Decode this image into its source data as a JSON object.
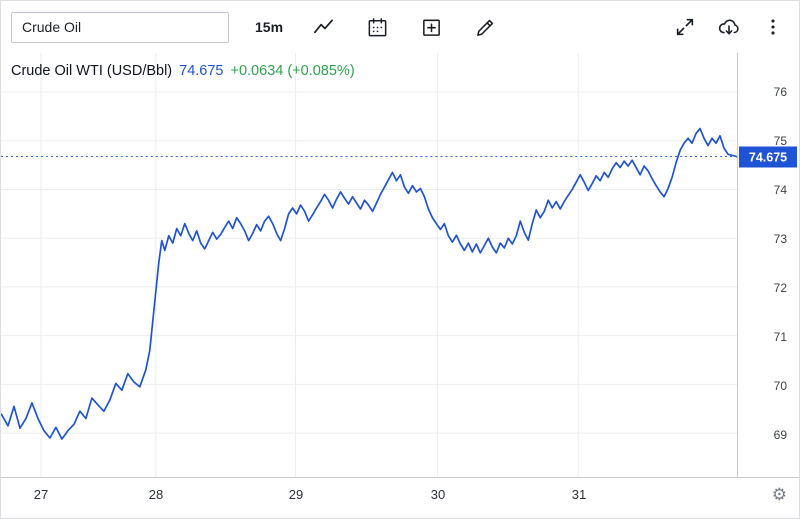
{
  "toolbar": {
    "symbol_input": {
      "value": "Crude Oil"
    },
    "interval": "15m",
    "icons": {
      "chart_type": "line-chart-icon",
      "calendar": "calendar-icon",
      "compare": "add-compare-icon",
      "draw": "draw-pencil-icon",
      "fullscreen": "fullscreen-icon",
      "download": "cloud-download-icon",
      "more": "kebab-menu-icon"
    }
  },
  "legend": {
    "symbol": "Crude Oil WTI (USD/Bbl)",
    "price": "74.675",
    "change": "+0.0634 (+0.085%)"
  },
  "price_axis": {
    "badge_value": "74.675"
  },
  "colors": {
    "line": "#1f53d6",
    "price_text": "#1f53d6",
    "change_text": "#2da44e",
    "badge_bg": "#1f53d6",
    "badge_text": "#ffffff",
    "grid": "#ebedef",
    "axis_text": "#3d414b",
    "axis_border": "#c9ccd1"
  },
  "chart_data": {
    "type": "line",
    "title": "Crude Oil WTI (USD/Bbl)",
    "interval": "15m",
    "last_price": 74.675,
    "change_abs": 0.0634,
    "change_pct": 0.085,
    "ylim": [
      68.1,
      76.8
    ],
    "y_ticks": [
      69,
      70,
      71,
      72,
      73,
      74,
      75,
      76
    ],
    "grid": true,
    "legend_position": "top-left",
    "xmax": 737,
    "x_ticks": [
      {
        "label": "27",
        "pos": 40
      },
      {
        "label": "28",
        "pos": 155
      },
      {
        "label": "29",
        "pos": 295
      },
      {
        "label": "30",
        "pos": 437
      },
      {
        "label": "31",
        "pos": 578
      }
    ],
    "series": [
      {
        "name": "Crude Oil WTI (USD/Bbl)",
        "color": "#1f53d6",
        "points": [
          [
            0,
            69.4
          ],
          [
            7,
            69.15
          ],
          [
            13,
            69.55
          ],
          [
            19,
            69.1
          ],
          [
            25,
            69.3
          ],
          [
            31,
            69.62
          ],
          [
            37,
            69.3
          ],
          [
            43,
            69.05
          ],
          [
            49,
            68.9
          ],
          [
            55,
            69.12
          ],
          [
            61,
            68.88
          ],
          [
            67,
            69.05
          ],
          [
            73,
            69.18
          ],
          [
            79,
            69.45
          ],
          [
            85,
            69.3
          ],
          [
            91,
            69.72
          ],
          [
            97,
            69.58
          ],
          [
            103,
            69.45
          ],
          [
            109,
            69.68
          ],
          [
            115,
            70.02
          ],
          [
            121,
            69.88
          ],
          [
            127,
            70.22
          ],
          [
            133,
            70.05
          ],
          [
            139,
            69.95
          ],
          [
            145,
            70.3
          ],
          [
            149,
            70.7
          ],
          [
            152,
            71.3
          ],
          [
            155,
            71.9
          ],
          [
            158,
            72.5
          ],
          [
            161,
            72.95
          ],
          [
            164,
            72.75
          ],
          [
            168,
            73.05
          ],
          [
            172,
            72.9
          ],
          [
            176,
            73.2
          ],
          [
            180,
            73.05
          ],
          [
            184,
            73.3
          ],
          [
            188,
            73.1
          ],
          [
            192,
            72.95
          ],
          [
            196,
            73.15
          ],
          [
            200,
            72.9
          ],
          [
            204,
            72.78
          ],
          [
            208,
            72.95
          ],
          [
            212,
            73.12
          ],
          [
            216,
            72.98
          ],
          [
            220,
            73.08
          ],
          [
            224,
            73.22
          ],
          [
            228,
            73.35
          ],
          [
            232,
            73.2
          ],
          [
            236,
            73.42
          ],
          [
            240,
            73.3
          ],
          [
            244,
            73.15
          ],
          [
            248,
            72.95
          ],
          [
            252,
            73.1
          ],
          [
            256,
            73.28
          ],
          [
            260,
            73.15
          ],
          [
            264,
            73.35
          ],
          [
            268,
            73.45
          ],
          [
            272,
            73.3
          ],
          [
            276,
            73.1
          ],
          [
            280,
            72.95
          ],
          [
            284,
            73.2
          ],
          [
            288,
            73.5
          ],
          [
            292,
            73.62
          ],
          [
            296,
            73.5
          ],
          [
            300,
            73.68
          ],
          [
            304,
            73.55
          ],
          [
            308,
            73.35
          ],
          [
            312,
            73.48
          ],
          [
            316,
            73.62
          ],
          [
            320,
            73.75
          ],
          [
            324,
            73.9
          ],
          [
            328,
            73.78
          ],
          [
            332,
            73.62
          ],
          [
            336,
            73.8
          ],
          [
            340,
            73.95
          ],
          [
            344,
            73.82
          ],
          [
            348,
            73.7
          ],
          [
            352,
            73.85
          ],
          [
            356,
            73.72
          ],
          [
            360,
            73.6
          ],
          [
            364,
            73.78
          ],
          [
            368,
            73.68
          ],
          [
            372,
            73.55
          ],
          [
            376,
            73.72
          ],
          [
            380,
            73.9
          ],
          [
            384,
            74.05
          ],
          [
            388,
            74.2
          ],
          [
            392,
            74.35
          ],
          [
            396,
            74.18
          ],
          [
            400,
            74.3
          ],
          [
            404,
            74.05
          ],
          [
            408,
            73.92
          ],
          [
            412,
            74.08
          ],
          [
            416,
            73.95
          ],
          [
            420,
            74.02
          ],
          [
            424,
            73.85
          ],
          [
            428,
            73.6
          ],
          [
            432,
            73.42
          ],
          [
            436,
            73.3
          ],
          [
            440,
            73.18
          ],
          [
            444,
            73.3
          ],
          [
            448,
            73.05
          ],
          [
            452,
            72.92
          ],
          [
            456,
            73.06
          ],
          [
            460,
            72.88
          ],
          [
            464,
            72.75
          ],
          [
            468,
            72.9
          ],
          [
            472,
            72.72
          ],
          [
            476,
            72.88
          ],
          [
            480,
            72.7
          ],
          [
            484,
            72.85
          ],
          [
            488,
            73.0
          ],
          [
            492,
            72.82
          ],
          [
            496,
            72.7
          ],
          [
            500,
            72.9
          ],
          [
            504,
            72.8
          ],
          [
            508,
            73.0
          ],
          [
            512,
            72.88
          ],
          [
            516,
            73.05
          ],
          [
            520,
            73.35
          ],
          [
            524,
            73.12
          ],
          [
            528,
            72.96
          ],
          [
            532,
            73.3
          ],
          [
            536,
            73.58
          ],
          [
            540,
            73.42
          ],
          [
            544,
            73.55
          ],
          [
            548,
            73.78
          ],
          [
            552,
            73.62
          ],
          [
            556,
            73.75
          ],
          [
            560,
            73.6
          ],
          [
            564,
            73.75
          ],
          [
            568,
            73.88
          ],
          [
            572,
            74.0
          ],
          [
            576,
            74.15
          ],
          [
            580,
            74.3
          ],
          [
            584,
            74.15
          ],
          [
            588,
            73.98
          ],
          [
            592,
            74.12
          ],
          [
            596,
            74.28
          ],
          [
            600,
            74.18
          ],
          [
            604,
            74.35
          ],
          [
            608,
            74.25
          ],
          [
            612,
            74.42
          ],
          [
            616,
            74.55
          ],
          [
            620,
            74.45
          ],
          [
            624,
            74.58
          ],
          [
            628,
            74.48
          ],
          [
            632,
            74.6
          ],
          [
            636,
            74.45
          ],
          [
            640,
            74.3
          ],
          [
            644,
            74.48
          ],
          [
            648,
            74.38
          ],
          [
            652,
            74.22
          ],
          [
            656,
            74.08
          ],
          [
            660,
            73.95
          ],
          [
            664,
            73.85
          ],
          [
            668,
            74.02
          ],
          [
            672,
            74.25
          ],
          [
            676,
            74.55
          ],
          [
            680,
            74.8
          ],
          [
            684,
            74.95
          ],
          [
            688,
            75.05
          ],
          [
            692,
            74.95
          ],
          [
            696,
            75.15
          ],
          [
            700,
            75.25
          ],
          [
            704,
            75.05
          ],
          [
            708,
            74.9
          ],
          [
            712,
            75.05
          ],
          [
            716,
            74.95
          ],
          [
            720,
            75.1
          ],
          [
            724,
            74.85
          ],
          [
            728,
            74.72
          ],
          [
            737,
            74.675
          ]
        ]
      }
    ]
  }
}
